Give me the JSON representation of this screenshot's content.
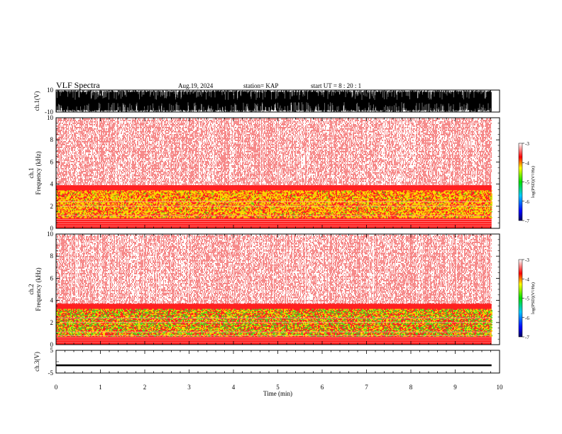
{
  "header": {
    "title": "VLF Spectra",
    "date": "Aug.19, 2024",
    "station": "station= KAP",
    "start": "start  UT  =   8  : 20 : 1"
  },
  "chart_data": [
    {
      "type": "line",
      "name": "ch1-waveform",
      "ylabel": "ch.1(V)",
      "ylim": [
        -10,
        10
      ],
      "yticks": [
        "10",
        "-10"
      ],
      "x_range_min": [
        0,
        9.82
      ],
      "description_band": "saturated oscillation spanning full range"
    },
    {
      "type": "heatmap",
      "name": "ch1-spectrogram",
      "ylabel": "ch.1\nFrequency  (kHz)",
      "ylim": [
        0,
        10
      ],
      "yticks": [
        0,
        2,
        4,
        6,
        8,
        10
      ],
      "x_range_min": [
        0,
        9.82
      ],
      "dominant_band_khz": [
        1.0,
        3.5
      ],
      "colorbar": {
        "label": "log(PSD)(V²/Hz)",
        "range": [
          -7,
          -3
        ],
        "ticks": [
          "-3",
          "-4",
          "-5",
          "-6",
          "-7"
        ]
      }
    },
    {
      "type": "heatmap",
      "name": "ch2-spectrogram",
      "ylabel": "ch.2\nFrequency  (kHz)",
      "ylim": [
        0,
        10
      ],
      "yticks": [
        0,
        2,
        4,
        6,
        8,
        10
      ],
      "x_range_min": [
        0,
        9.82
      ],
      "dominant_band_khz": [
        0.8,
        3.3
      ],
      "colorbar": {
        "label": "log(PSD)(V²/Hz)",
        "range": [
          -7,
          -3
        ],
        "ticks": [
          "-3",
          "-4",
          "-5",
          "-6",
          "-7"
        ]
      }
    },
    {
      "type": "line",
      "name": "ch3-waveform",
      "ylabel": "ch.3(V)",
      "ylim": [
        -5,
        5
      ],
      "yticks": [
        "5",
        "-5"
      ],
      "x_range_min": [
        0,
        9.82
      ],
      "level_band_v": [
        -2.0,
        -1.2
      ]
    }
  ],
  "xaxis": {
    "label": "Time  (min)",
    "range": [
      0,
      10
    ],
    "ticks": [
      "0",
      "1",
      "2",
      "3",
      "4",
      "5",
      "6",
      "7",
      "8",
      "9",
      "10"
    ]
  }
}
